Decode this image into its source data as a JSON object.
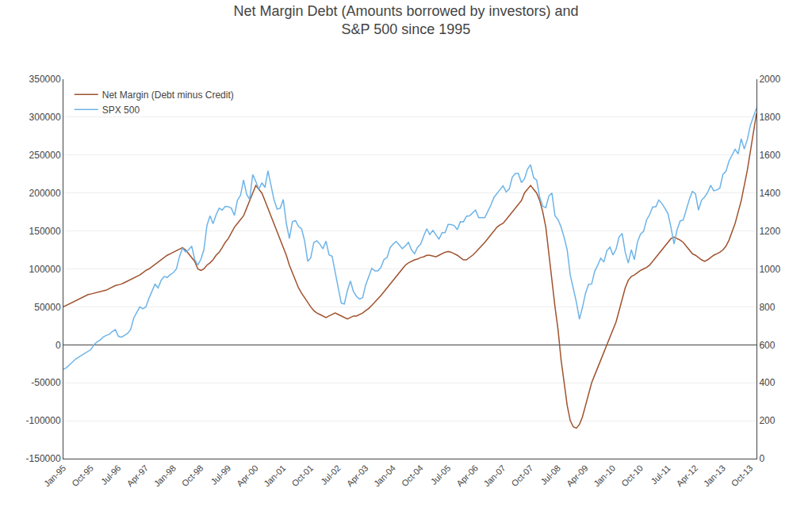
{
  "chart_data": {
    "type": "line",
    "title": "Net Margin Debt (Amounts borrowed by investors) and\nS&P 500 since 1995",
    "categories": [
      "Jan-95",
      null,
      null,
      null,
      null,
      null,
      null,
      null,
      null,
      "Oct-95",
      null,
      null,
      null,
      null,
      null,
      null,
      null,
      null,
      "Jul-96",
      null,
      null,
      null,
      null,
      null,
      null,
      null,
      null,
      "Apr-97",
      null,
      null,
      null,
      null,
      null,
      null,
      null,
      null,
      "Jan-98",
      null,
      null,
      null,
      null,
      null,
      null,
      null,
      null,
      "Oct-98",
      null,
      null,
      null,
      null,
      null,
      null,
      null,
      null,
      "Jul-99",
      null,
      null,
      null,
      null,
      null,
      null,
      null,
      null,
      "Apr-00",
      null,
      null,
      null,
      null,
      null,
      null,
      null,
      null,
      "Jan-01",
      null,
      null,
      null,
      null,
      null,
      null,
      null,
      null,
      "Oct-01",
      null,
      null,
      null,
      null,
      null,
      null,
      null,
      null,
      "Jul-02",
      null,
      null,
      null,
      null,
      null,
      null,
      null,
      null,
      "Apr-03",
      null,
      null,
      null,
      null,
      null,
      null,
      null,
      null,
      "Jan-04",
      null,
      null,
      null,
      null,
      null,
      null,
      null,
      null,
      "Oct-04",
      null,
      null,
      null,
      null,
      null,
      null,
      null,
      null,
      "Jul-05",
      null,
      null,
      null,
      null,
      null,
      null,
      null,
      null,
      "Apr-06",
      null,
      null,
      null,
      null,
      null,
      null,
      null,
      null,
      "Jan-07",
      null,
      null,
      null,
      null,
      null,
      null,
      null,
      null,
      "Oct-07",
      null,
      null,
      null,
      null,
      null,
      null,
      null,
      null,
      "Jul-08",
      null,
      null,
      null,
      null,
      null,
      null,
      null,
      null,
      "Apr-09",
      null,
      null,
      null,
      null,
      null,
      null,
      null,
      null,
      "Jan-10",
      null,
      null,
      null,
      null,
      null,
      null,
      null,
      null,
      "Oct-10",
      null,
      null,
      null,
      null,
      null,
      null,
      null,
      null,
      "Jul-11",
      null,
      null,
      null,
      null,
      null,
      null,
      null,
      null,
      "Apr-12",
      null,
      null,
      null,
      null,
      null,
      null,
      null,
      null,
      "Jan-13",
      null,
      null,
      null,
      null,
      null,
      null,
      null,
      null,
      "Oct-13",
      null,
      null
    ],
    "series": [
      {
        "name": "Net Margin (Debt minus Credit)",
        "color": "#A0522D",
        "values": [
          50000,
          52000,
          54000,
          56000,
          58000,
          60000,
          62000,
          64000,
          66000,
          67000,
          68000,
          69000,
          70000,
          71000,
          72000,
          74000,
          76000,
          78000,
          79000,
          80000,
          82000,
          84000,
          86000,
          88000,
          90000,
          92000,
          95000,
          98000,
          100000,
          103000,
          106000,
          109000,
          112000,
          115000,
          118000,
          120000,
          122000,
          124000,
          126000,
          128000,
          125000,
          120000,
          115000,
          110000,
          100000,
          98000,
          100000,
          105000,
          108000,
          112000,
          118000,
          122000,
          128000,
          135000,
          140000,
          148000,
          155000,
          160000,
          165000,
          170000,
          180000,
          190000,
          200000,
          210000,
          205000,
          200000,
          190000,
          180000,
          170000,
          160000,
          150000,
          140000,
          130000,
          118000,
          105000,
          95000,
          85000,
          75000,
          68000,
          62000,
          55000,
          50000,
          45000,
          42000,
          40000,
          38000,
          36000,
          38000,
          40000,
          42000,
          40000,
          38000,
          36000,
          34000,
          36000,
          38000,
          38000,
          40000,
          42000,
          45000,
          48000,
          52000,
          56000,
          60000,
          65000,
          70000,
          75000,
          80000,
          85000,
          90000,
          95000,
          100000,
          105000,
          108000,
          110000,
          112000,
          113000,
          115000,
          116000,
          118000,
          118000,
          117000,
          116000,
          118000,
          120000,
          122000,
          123000,
          122000,
          120000,
          118000,
          115000,
          112000,
          112000,
          115000,
          118000,
          122000,
          126000,
          130000,
          135000,
          140000,
          145000,
          150000,
          155000,
          158000,
          160000,
          165000,
          170000,
          175000,
          180000,
          185000,
          190000,
          200000,
          205000,
          210000,
          205000,
          200000,
          190000,
          175000,
          155000,
          120000,
          80000,
          50000,
          20000,
          -20000,
          -50000,
          -80000,
          -100000,
          -108000,
          -110000,
          -105000,
          -95000,
          -80000,
          -65000,
          -50000,
          -40000,
          -30000,
          -20000,
          -10000,
          0,
          10000,
          20000,
          30000,
          45000,
          60000,
          75000,
          85000,
          90000,
          92000,
          95000,
          98000,
          100000,
          102000,
          105000,
          110000,
          115000,
          120000,
          125000,
          130000,
          135000,
          140000,
          142000,
          140000,
          138000,
          135000,
          130000,
          125000,
          120000,
          118000,
          115000,
          112000,
          110000,
          112000,
          115000,
          118000,
          120000,
          122000,
          125000,
          130000,
          138000,
          148000,
          160000,
          175000,
          190000,
          210000,
          230000,
          255000,
          280000,
          305000
        ]
      },
      {
        "name": "SPX 500",
        "color": "#6EB4E8",
        "axis": "y2",
        "values": [
          470,
          480,
          495,
          510,
          525,
          535,
          545,
          555,
          565,
          575,
          600,
          615,
          625,
          640,
          650,
          655,
          670,
          680,
          645,
          640,
          650,
          660,
          680,
          740,
          770,
          800,
          790,
          800,
          845,
          885,
          920,
          900,
          940,
          960,
          955,
          970,
          980,
          1000,
          1065,
          1110,
          1090,
          1100,
          1120,
          1050,
          1020,
          1050,
          1100,
          1229,
          1280,
          1238,
          1285,
          1320,
          1310,
          1330,
          1328,
          1320,
          1282,
          1362,
          1388,
          1469,
          1394,
          1366,
          1498,
          1461,
          1420,
          1454,
          1430,
          1517,
          1436,
          1362,
          1315,
          1320,
          1366,
          1240,
          1160,
          1249,
          1255,
          1224,
          1211,
          1148,
          1040,
          1059,
          1139,
          1148,
          1130,
          1106,
          1147,
          1074,
          1067,
          990,
          900,
          820,
          815,
          885,
          936,
          880,
          855,
          841,
          849,
          916,
          963,
          1003,
          990,
          990,
          1008,
          1050,
          1060,
          1112,
          1131,
          1145,
          1126,
          1107,
          1121,
          1140,
          1101,
          1080,
          1115,
          1130,
          1173,
          1212,
          1181,
          1203,
          1180,
          1156,
          1191,
          1191,
          1235,
          1234,
          1228,
          1207,
          1249,
          1248,
          1278,
          1280,
          1295,
          1310,
          1270,
          1270,
          1270,
          1303,
          1336,
          1377,
          1400,
          1418,
          1438,
          1406,
          1420,
          1483,
          1503,
          1503,
          1455,
          1474,
          1526,
          1549,
          1481,
          1468,
          1378,
          1330,
          1323,
          1385,
          1400,
          1280,
          1260,
          1220,
          1166,
          1100,
          968,
          903,
          825,
          735,
          797,
          872,
          919,
          920,
          987,
          1020,
          1057,
          1036,
          1096,
          1115,
          1073,
          1104,
          1169,
          1187,
          1089,
          1031,
          1101,
          1049,
          1141,
          1183,
          1198,
          1258,
          1286,
          1327,
          1327,
          1363,
          1345,
          1320,
          1292,
          1219,
          1131,
          1207,
          1253,
          1258,
          1312,
          1366,
          1408,
          1397,
          1310,
          1362,
          1379,
          1403,
          1441,
          1412,
          1416,
          1426,
          1498,
          1514,
          1569,
          1597,
          1631,
          1606,
          1686,
          1632,
          1682,
          1757,
          1806,
          1848
        ]
      }
    ],
    "ylim": [
      -150000,
      350000
    ],
    "yticks": [
      -150000,
      -100000,
      -50000,
      0,
      50000,
      100000,
      150000,
      200000,
      250000,
      300000,
      350000
    ],
    "y2lim": [
      0,
      2000
    ],
    "y2ticks": [
      0,
      200,
      400,
      600,
      800,
      1000,
      1200,
      1400,
      1600,
      1800,
      2000
    ],
    "grid": true,
    "legend": "upper left"
  }
}
